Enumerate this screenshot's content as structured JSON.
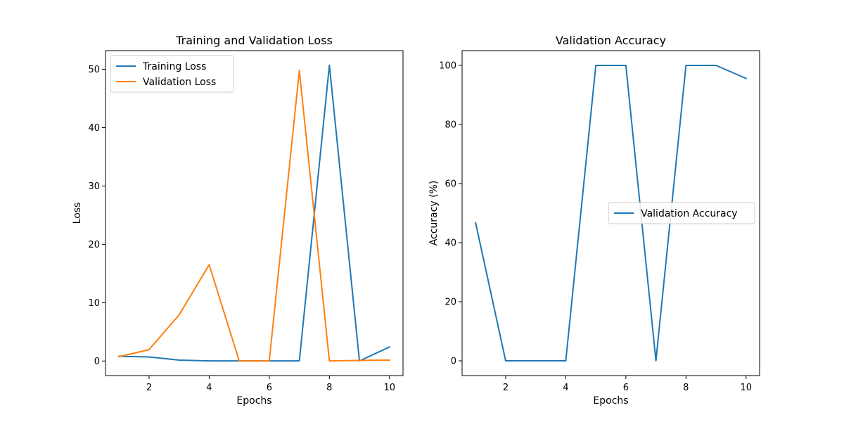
{
  "chart_data": [
    {
      "type": "line",
      "title": "Training and Validation Loss",
      "xlabel": "Epochs",
      "ylabel": "Loss",
      "x": [
        1,
        2,
        3,
        4,
        5,
        6,
        7,
        8,
        9,
        10
      ],
      "xlim": [
        0.55,
        10.45
      ],
      "ylim": [
        -2.5,
        53.2
      ],
      "xticks": [
        2,
        4,
        6,
        8,
        10
      ],
      "yticks": [
        0,
        10,
        20,
        30,
        40,
        50
      ],
      "grid": false,
      "legend_position": "upper-left",
      "series": [
        {
          "name": "Training Loss",
          "color": "#1f77b4",
          "values": [
            0.8,
            0.7,
            0.15,
            0.02,
            0.01,
            0.01,
            0.01,
            50.7,
            0.01,
            2.4
          ]
        },
        {
          "name": "Validation Loss",
          "color": "#ff7f0e",
          "values": [
            0.75,
            1.95,
            7.9,
            16.5,
            0.01,
            0.01,
            49.8,
            0.02,
            0.1,
            0.15
          ]
        }
      ]
    },
    {
      "type": "line",
      "title": "Validation Accuracy",
      "xlabel": "Epochs",
      "ylabel": "Accuracy (%)",
      "x": [
        1,
        2,
        3,
        4,
        5,
        6,
        7,
        8,
        9,
        10
      ],
      "xlim": [
        0.55,
        10.45
      ],
      "ylim": [
        -5,
        105
      ],
      "xticks": [
        2,
        4,
        6,
        8,
        10
      ],
      "yticks": [
        0,
        20,
        40,
        60,
        80,
        100
      ],
      "grid": false,
      "legend_position": "center-right",
      "series": [
        {
          "name": "Validation Accuracy",
          "color": "#1f77b4",
          "values": [
            46.7,
            0,
            0,
            0,
            100,
            100,
            0,
            100,
            100,
            95.6
          ]
        }
      ]
    }
  ]
}
